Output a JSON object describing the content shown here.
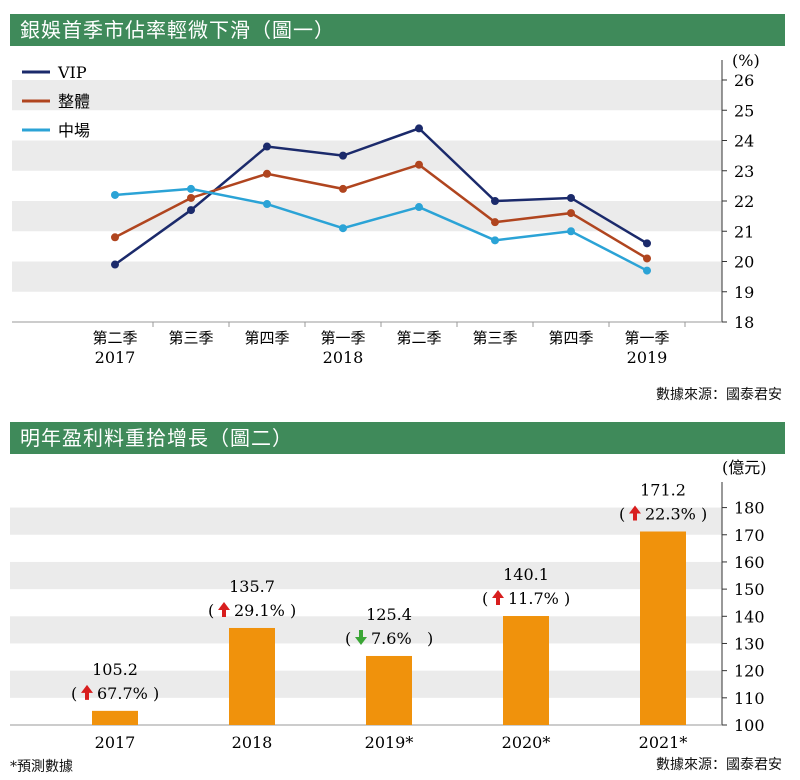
{
  "chart1": {
    "title": "銀娛首季市佔率輕微下滑（圖一）",
    "source": "數據來源：國泰君安",
    "chart_data": {
      "type": "line",
      "unit": "(%)",
      "categories": [
        "第二季",
        "第三季",
        "第四季",
        "第一季",
        "第二季",
        "第三季",
        "第四季",
        "第一季"
      ],
      "year_labels": [
        {
          "index": 0,
          "label": "2017"
        },
        {
          "index": 3,
          "label": "2018"
        },
        {
          "index": 7,
          "label": "2019"
        }
      ],
      "ylim": [
        18,
        26
      ],
      "yticks": [
        18,
        19,
        20,
        21,
        22,
        23,
        24,
        25,
        26
      ],
      "series": [
        {
          "name": "VIP",
          "color": "#1b2a6b",
          "values": [
            19.9,
            21.7,
            23.8,
            23.5,
            24.4,
            22.0,
            22.1,
            20.6
          ]
        },
        {
          "name": "整體",
          "color": "#b0451f",
          "values": [
            20.8,
            22.1,
            22.9,
            22.4,
            23.2,
            21.3,
            21.6,
            20.1
          ]
        },
        {
          "name": "中場",
          "color": "#2ba3d6",
          "values": [
            22.2,
            22.4,
            21.9,
            21.1,
            21.8,
            20.7,
            21.0,
            19.7
          ]
        }
      ]
    }
  },
  "chart2": {
    "title": "明年盈利料重拾增長（圖二）",
    "source": "數據來源：國泰君安",
    "note": "*預測數據",
    "chart_data": {
      "type": "bar",
      "unit": "(億元)",
      "categories": [
        "2017",
        "2018",
        "2019*",
        "2020*",
        "2021*"
      ],
      "values": [
        105.2,
        135.7,
        125.4,
        140.1,
        171.2
      ],
      "value_labels": [
        "105.2",
        "135.7",
        "125.4",
        "140.1",
        "171.2"
      ],
      "changes": [
        {
          "dir": "up",
          "text": "67.7%"
        },
        {
          "dir": "up",
          "text": "29.1%"
        },
        {
          "dir": "down",
          "text": "7.6%"
        },
        {
          "dir": "up",
          "text": "11.7%"
        },
        {
          "dir": "up",
          "text": "22.3%"
        }
      ],
      "ylim": [
        100,
        185
      ],
      "yticks": [
        100,
        110,
        120,
        130,
        140,
        150,
        160,
        170,
        180
      ],
      "bar_color": "#f0920c",
      "up_color": "#d81e1e",
      "down_color": "#3aa535"
    }
  }
}
